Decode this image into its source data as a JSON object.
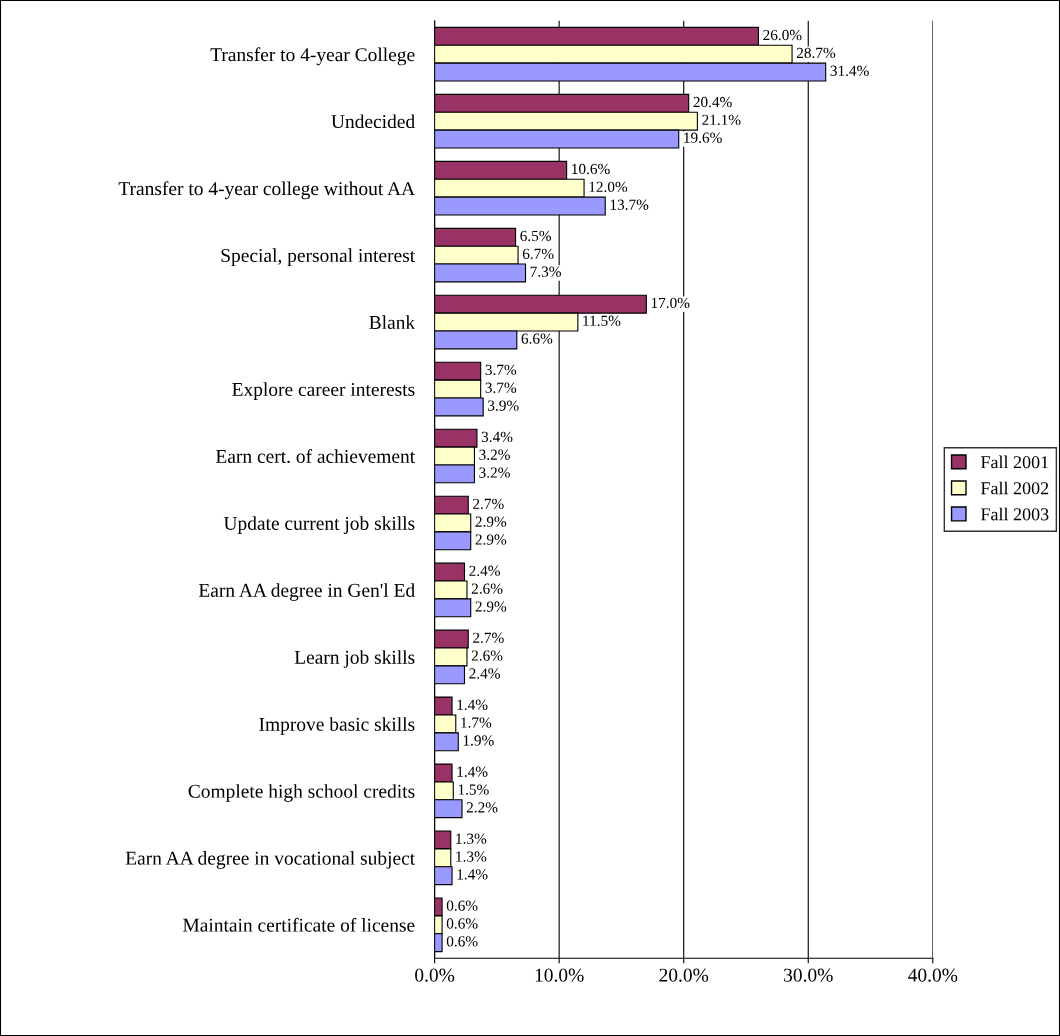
{
  "chart_data": {
    "type": "bar",
    "orientation": "horizontal",
    "categories": [
      "Transfer to 4-year College",
      "Undecided",
      "Transfer to 4-year college without AA",
      "Special, personal interest",
      "Blank",
      "Explore career interests",
      "Earn cert. of achievement",
      "Update current job skills",
      "Earn AA degree in Gen'l Ed",
      "Learn job skills",
      "Improve basic skills",
      "Complete high school credits",
      "Earn AA degree in vocational subject",
      "Maintain certificate of license"
    ],
    "series": [
      {
        "name": "Fall 2001",
        "color": "#993366",
        "values": [
          26.0,
          20.4,
          10.6,
          6.5,
          17.0,
          3.7,
          3.4,
          2.7,
          2.4,
          2.7,
          1.4,
          1.4,
          1.3,
          0.6
        ],
        "value_labels": [
          "26.0%",
          "20.4%",
          "10.6%",
          "6.5%",
          "17.0%",
          "3.7%",
          "3.4%",
          "2.7%",
          "2.4%",
          "2.7%",
          "1.4%",
          "1.4%",
          "1.3%",
          "0.6%"
        ]
      },
      {
        "name": "Fall 2002",
        "color": "#ffffcc",
        "values": [
          28.7,
          21.1,
          12.0,
          6.7,
          11.5,
          3.7,
          3.2,
          2.9,
          2.6,
          2.6,
          1.7,
          1.5,
          1.3,
          0.6
        ],
        "value_labels": [
          "28.7%",
          "21.1%",
          "12.0%",
          "6.7%",
          "11.5%",
          "3.7%",
          "3.2%",
          "2.9%",
          "2.6%",
          "2.6%",
          "1.7%",
          "1.5%",
          "1.3%",
          "0.6%"
        ]
      },
      {
        "name": "Fall 2003",
        "color": "#9999ff",
        "values": [
          31.4,
          19.6,
          13.7,
          7.3,
          6.6,
          3.9,
          3.2,
          2.9,
          2.9,
          2.4,
          1.9,
          2.2,
          1.4,
          0.6
        ],
        "value_labels": [
          "31.4%",
          "19.6%",
          "13.7%",
          "7.3%",
          "6.6%",
          "3.9%",
          "3.2%",
          "2.9%",
          "2.9%",
          "2.4%",
          "1.9%",
          "2.2%",
          "1.4%",
          "0.6%"
        ]
      }
    ],
    "xlim": [
      0,
      40
    ],
    "xticks": [
      {
        "value": 0,
        "label": "0.0%"
      },
      {
        "value": 10,
        "label": "10.0%"
      },
      {
        "value": 20,
        "label": "20.0%"
      },
      {
        "value": 30,
        "label": "30.0%"
      },
      {
        "value": 40,
        "label": "40.0%"
      }
    ],
    "grid": "x",
    "legend": "right"
  }
}
